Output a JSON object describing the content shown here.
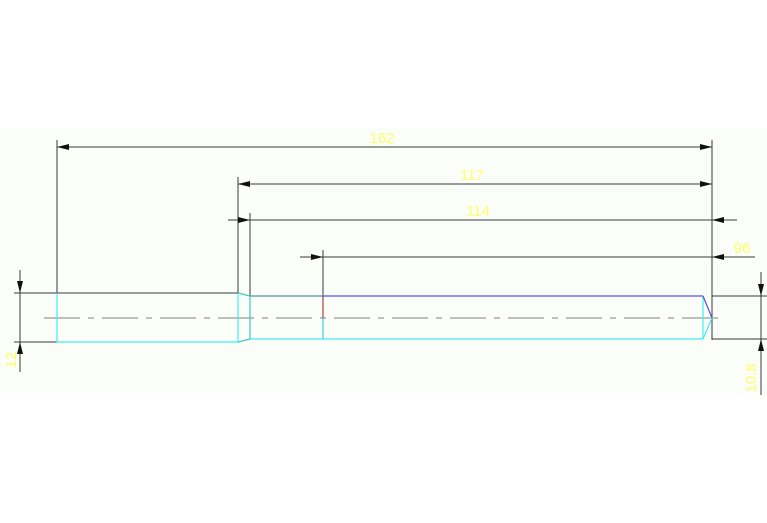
{
  "drawing": {
    "dimensions": {
      "overall_length": "162",
      "length_117": "117",
      "length_114": "114",
      "length_96": "96",
      "diameter_left": "12",
      "diameter_right": "10.8"
    },
    "colors": {
      "background_band": "#fbfdf9",
      "dimension_line": "#3a3a3a",
      "dimension_text": "#ffff66",
      "part_edge_cyan": "#40f0f0",
      "part_edge_blue": "#5a50e0",
      "centerline": "#999999",
      "marker_red": "#a04040"
    }
  }
}
